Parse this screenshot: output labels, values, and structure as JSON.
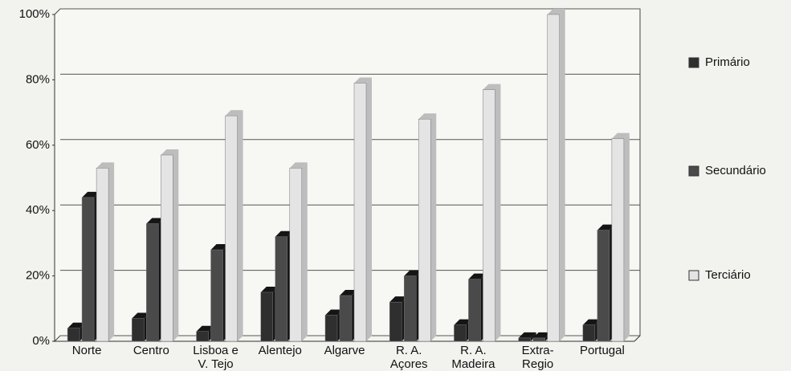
{
  "chart_data": {
    "type": "bar",
    "categories": [
      "Norte",
      "Centro",
      "Lisboa e V. Tejo",
      "Alentejo",
      "Algarve",
      "R. A. Açores",
      "R. A. Madeira",
      "Extra-Regio",
      "Portugal"
    ],
    "series": [
      {
        "name": "Primário",
        "color": "#2f2f2f",
        "values": [
          4,
          7,
          3,
          15,
          8,
          12,
          5,
          1,
          5
        ]
      },
      {
        "name": "Secundário",
        "color": "#4a4a4a",
        "values": [
          44,
          36,
          28,
          32,
          14,
          20,
          19,
          1,
          34
        ]
      },
      {
        "name": "Terciário",
        "color": "#e4e4e4",
        "values": [
          53,
          57,
          69,
          53,
          79,
          68,
          77,
          100,
          62
        ]
      }
    ],
    "ylim": [
      0,
      100
    ],
    "yticks": [
      {
        "value": 0,
        "label": "0%"
      },
      {
        "value": 20,
        "label": "20%"
      },
      {
        "value": 40,
        "label": "40%"
      },
      {
        "value": 60,
        "label": "60%"
      },
      {
        "value": 80,
        "label": "80%"
      },
      {
        "value": 100,
        "label": "100%"
      }
    ],
    "grid": true
  }
}
